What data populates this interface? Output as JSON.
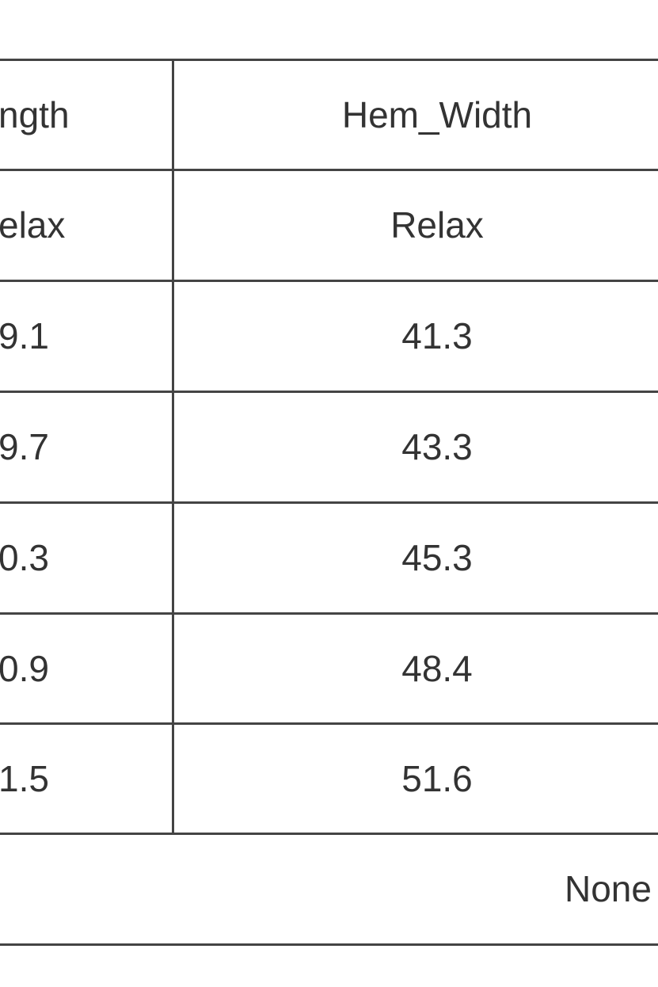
{
  "table": {
    "header": [
      "ngth",
      "Hem_Width"
    ],
    "subheader": [
      "elax",
      "Relax"
    ],
    "rows": [
      [
        "9.1",
        "41.3"
      ],
      [
        "9.7",
        "43.3"
      ],
      [
        "0.3",
        "45.3"
      ],
      [
        "0.9",
        "48.4"
      ],
      [
        "1.5",
        "51.6"
      ]
    ],
    "footer": "None"
  }
}
